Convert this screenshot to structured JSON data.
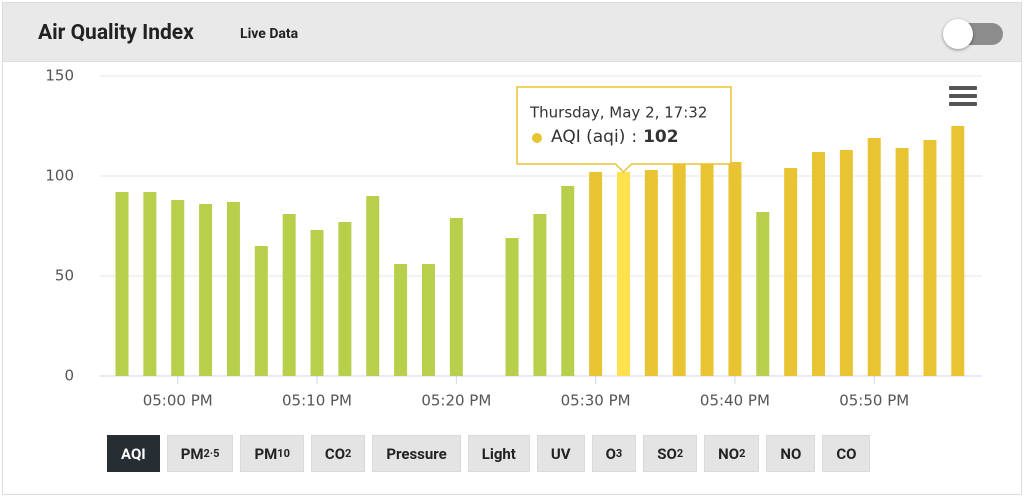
{
  "header": {
    "title": "Air Quality Index",
    "subtitle": "Live Data"
  },
  "chart_data": {
    "type": "bar",
    "x": [
      "04:56 PM",
      "04:58 PM",
      "05:00 PM",
      "05:02 PM",
      "05:04 PM",
      "05:06 PM",
      "05:08 PM",
      "05:10 PM",
      "05:12 PM",
      "05:14 PM",
      "05:16 PM",
      "05:18 PM",
      "05:20 PM",
      "05:22 PM",
      "05:24 PM",
      "05:26 PM",
      "05:28 PM",
      "05:30 PM",
      "05:32 PM",
      "05:34 PM",
      "05:36 PM",
      "05:38 PM",
      "05:40 PM",
      "05:42 PM",
      "05:44 PM",
      "05:46 PM",
      "05:48 PM",
      "05:50 PM",
      "05:52 PM",
      "05:54 PM",
      "05:56 PM"
    ],
    "values": [
      92,
      92,
      88,
      86,
      87,
      65,
      81,
      73,
      77,
      90,
      56,
      56,
      79,
      null,
      69,
      81,
      95,
      102,
      102,
      103,
      107,
      107,
      107,
      82,
      104,
      112,
      113,
      119,
      114,
      118,
      125
    ],
    "colors": [
      "#b8cf4b",
      "#b8cf4b",
      "#b8cf4b",
      "#b8cf4b",
      "#b8cf4b",
      "#b8cf4b",
      "#b8cf4b",
      "#b8cf4b",
      "#b8cf4b",
      "#b8cf4b",
      "#b8cf4b",
      "#b8cf4b",
      "#b8cf4b",
      "#b8cf4b",
      "#b8cf4b",
      "#b8cf4b",
      "#b8cf4b",
      "#e9c432",
      "#ffe04f",
      "#e9c432",
      "#e9c432",
      "#e9c432",
      "#e9c432",
      "#b8cf4b",
      "#e9c432",
      "#e9c432",
      "#e9c432",
      "#e9c432",
      "#e9c432",
      "#e9c432",
      "#e9c432"
    ],
    "ylim": [
      0,
      150
    ],
    "yticks": [
      0,
      50,
      100,
      150
    ],
    "xticks": [
      "05:00 PM",
      "05:10 PM",
      "05:20 PM",
      "05:30 PM",
      "05:40 PM",
      "05:50 PM"
    ],
    "grid": true,
    "tooltip": {
      "title": "Thursday, May 2, 17:32",
      "series": "AQI (aqi)",
      "separator": ":",
      "index": 18,
      "color": "#e9c432"
    }
  },
  "buttons": [
    {
      "label": "AQI",
      "active": true
    },
    {
      "label": "PM",
      "sub": "2·5"
    },
    {
      "label": "PM",
      "sub": "10"
    },
    {
      "label": "CO",
      "sub": "2"
    },
    {
      "label": "Pressure"
    },
    {
      "label": "Light"
    },
    {
      "label": "UV"
    },
    {
      "label": "O",
      "sub": "3"
    },
    {
      "label": "SO",
      "sub": "2"
    },
    {
      "label": "NO",
      "sub": "2"
    },
    {
      "label": "NO"
    },
    {
      "label": "CO"
    }
  ]
}
